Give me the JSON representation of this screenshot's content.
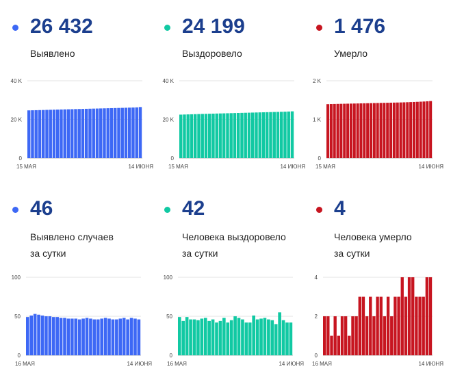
{
  "panels": [
    {
      "id": "p1",
      "value": "26 432",
      "label": "Выявлено",
      "color": "#3d68f5"
    },
    {
      "id": "p2",
      "value": "24 199",
      "label": "Выздоровело",
      "color": "#11c9a3"
    },
    {
      "id": "p3",
      "value": "1 476",
      "label": "Умерло",
      "color": "#c71520"
    },
    {
      "id": "p4",
      "value": "46",
      "label": "Выявлено случаев\nза сутки",
      "color": "#3d68f5"
    },
    {
      "id": "p5",
      "value": "42",
      "label": "Человека выздоровело\nза сутки",
      "color": "#11c9a3"
    },
    {
      "id": "p6",
      "value": "4",
      "label": "Человека умерло\nза сутки",
      "color": "#c71520"
    }
  ],
  "chart_data": [
    {
      "type": "bar",
      "panel": "p1",
      "color": "#3d68f5",
      "x_start": "15 МАЯ",
      "x_end": "14 ИЮНЯ",
      "ylim": [
        0,
        40000
      ],
      "yticks": [
        0,
        20000,
        40000
      ],
      "ytick_labels": [
        "0",
        "20 K",
        "40 K"
      ],
      "values": [
        24700,
        24750,
        24800,
        24850,
        24900,
        24960,
        25010,
        25060,
        25110,
        25160,
        25210,
        25260,
        25310,
        25360,
        25410,
        25460,
        25510,
        25560,
        25610,
        25650,
        25700,
        25750,
        25800,
        25850,
        25900,
        25950,
        26000,
        26060,
        26120,
        26180,
        26250,
        26432
      ]
    },
    {
      "type": "bar",
      "panel": "p2",
      "color": "#11c9a3",
      "x_start": "15 МАЯ",
      "x_end": "14 ИЮНЯ",
      "ylim": [
        0,
        40000
      ],
      "yticks": [
        0,
        20000,
        40000
      ],
      "ytick_labels": [
        "0",
        "20 K",
        "40 K"
      ],
      "values": [
        22500,
        22560,
        22620,
        22680,
        22740,
        22800,
        22860,
        22910,
        22960,
        23010,
        23060,
        23110,
        23160,
        23210,
        23260,
        23310,
        23360,
        23410,
        23460,
        23510,
        23560,
        23610,
        23660,
        23710,
        23760,
        23810,
        23860,
        23910,
        23960,
        24010,
        24100,
        24199
      ]
    },
    {
      "type": "bar",
      "panel": "p3",
      "color": "#c71520",
      "x_start": "15 МАЯ",
      "x_end": "14 ИЮНЯ",
      "ylim": [
        0,
        2000
      ],
      "yticks": [
        0,
        1000,
        2000
      ],
      "ytick_labels": [
        "0",
        "1 K",
        "2 K"
      ],
      "values": [
        1395,
        1398,
        1400,
        1402,
        1404,
        1406,
        1408,
        1410,
        1412,
        1414,
        1416,
        1418,
        1420,
        1422,
        1424,
        1426,
        1428,
        1430,
        1432,
        1434,
        1436,
        1438,
        1440,
        1443,
        1446,
        1449,
        1452,
        1456,
        1460,
        1464,
        1470,
        1476
      ]
    },
    {
      "type": "bar",
      "panel": "p4",
      "color": "#3d68f5",
      "x_start": "16 МАЯ",
      "x_end": "14 ИЮНЯ",
      "ylim": [
        0,
        100
      ],
      "yticks": [
        0,
        50,
        100
      ],
      "ytick_labels": [
        "0",
        "50",
        "100"
      ],
      "values": [
        49,
        51,
        53,
        52,
        51,
        50,
        50,
        49,
        49,
        48,
        48,
        47,
        47,
        47,
        46,
        47,
        48,
        47,
        46,
        46,
        47,
        48,
        47,
        46,
        46,
        47,
        48,
        46,
        48,
        47,
        46
      ]
    },
    {
      "type": "bar",
      "panel": "p5",
      "color": "#11c9a3",
      "x_start": "16 МАЯ",
      "x_end": "14 ИЮНЯ",
      "ylim": [
        0,
        100
      ],
      "yticks": [
        0,
        50,
        100
      ],
      "ytick_labels": [
        "0",
        "50",
        "100"
      ],
      "values": [
        49,
        44,
        49,
        46,
        46,
        45,
        47,
        48,
        44,
        46,
        42,
        44,
        48,
        42,
        45,
        50,
        48,
        46,
        42,
        42,
        51,
        46,
        47,
        48,
        46,
        45,
        40,
        55,
        45,
        42,
        42
      ]
    },
    {
      "type": "bar",
      "panel": "p6",
      "color": "#c71520",
      "x_start": "16 МАЯ",
      "x_end": "14 ИЮНЯ",
      "ylim": [
        0,
        4
      ],
      "yticks": [
        0,
        2,
        4
      ],
      "ytick_labels": [
        "0",
        "2",
        "4"
      ],
      "values": [
        2,
        2,
        1,
        2,
        1,
        2,
        2,
        1,
        2,
        2,
        3,
        3,
        2,
        3,
        2,
        3,
        3,
        2,
        3,
        2,
        3,
        3,
        4,
        3,
        4,
        4,
        3,
        3,
        3,
        4,
        4
      ]
    }
  ]
}
